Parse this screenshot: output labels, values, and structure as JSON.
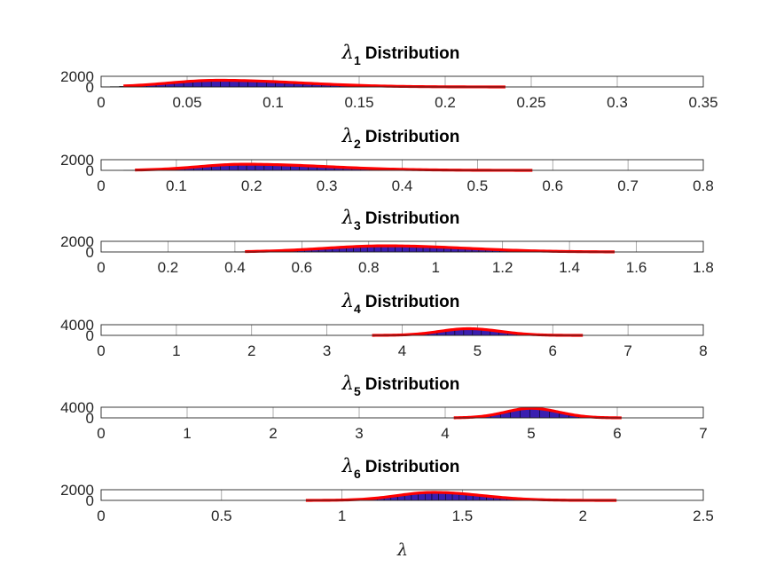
{
  "chart_data": {
    "type": "figure",
    "xlabel": "λ",
    "colors": {
      "bars": "#3a1fb0",
      "bar_edge": "#000000",
      "fit": "#ff0000",
      "axes": "#262626",
      "grid": "#262626"
    },
    "grid": true,
    "subplots": [
      {
        "title": {
          "symbol": "λ",
          "subscript": "1",
          "text": "Distribution"
        },
        "xlim": [
          0,
          0.35
        ],
        "ylim": [
          0,
          2000
        ],
        "xticks": [
          0,
          0.05,
          0.1,
          0.15,
          0.2,
          0.25,
          0.3,
          0.35
        ],
        "xtick_labels": [
          "0",
          "0.05",
          "0.1",
          "0.15",
          "0.2",
          "0.25",
          "0.3",
          "0.35"
        ],
        "yticks": [
          0,
          2000
        ],
        "ytick_labels": [
          "0",
          "2000"
        ],
        "histogram": {
          "range": [
            0.0,
            0.32
          ],
          "peak_x": 0.068,
          "peak": 1100,
          "sigma_left": 0.025,
          "sigma_right": 0.04,
          "bins": 60
        },
        "fit": {
          "range": [
            0.013,
            0.235
          ],
          "peak_x": 0.068,
          "peak": 1250,
          "sigma_left": 0.028,
          "sigma_right": 0.048
        }
      },
      {
        "title": {
          "symbol": "λ",
          "subscript": "2",
          "text": "Distribution"
        },
        "xlim": [
          0,
          0.8
        ],
        "ylim": [
          0,
          2000
        ],
        "xticks": [
          0,
          0.1,
          0.2,
          0.3,
          0.4,
          0.5,
          0.6,
          0.7,
          0.8
        ],
        "xtick_labels": [
          "0",
          "0.1",
          "0.2",
          "0.3",
          "0.4",
          "0.5",
          "0.6",
          "0.7",
          "0.8"
        ],
        "yticks": [
          0,
          2000
        ],
        "ytick_labels": [
          "0",
          "2000"
        ],
        "histogram": {
          "range": [
            0.03,
            0.73
          ],
          "peak_x": 0.19,
          "peak": 1000,
          "sigma_left": 0.055,
          "sigma_right": 0.1,
          "bins": 60
        },
        "fit": {
          "range": [
            0.045,
            0.573
          ],
          "peak_x": 0.19,
          "peak": 1150,
          "sigma_left": 0.06,
          "sigma_right": 0.11
        }
      },
      {
        "title": {
          "symbol": "λ",
          "subscript": "3",
          "text": "Distribution"
        },
        "xlim": [
          0,
          1.8
        ],
        "ylim": [
          0,
          2000
        ],
        "xticks": [
          0,
          0.2,
          0.4,
          0.6,
          0.8,
          1,
          1.2,
          1.4,
          1.6,
          1.8
        ],
        "xtick_labels": [
          "0",
          "0.2",
          "0.4",
          "0.6",
          "0.8",
          "1",
          "1.2",
          "1.4",
          "1.6",
          "1.8"
        ],
        "yticks": [
          0,
          2000
        ],
        "ytick_labels": [
          "0",
          "2000"
        ],
        "histogram": {
          "range": [
            0.4,
            1.65
          ],
          "peak_x": 0.85,
          "peak": 1000,
          "sigma_left": 0.17,
          "sigma_right": 0.22,
          "bins": 60
        },
        "fit": {
          "range": [
            0.43,
            1.535
          ],
          "peak_x": 0.85,
          "peak": 1150,
          "sigma_left": 0.18,
          "sigma_right": 0.24
        }
      },
      {
        "title": {
          "symbol": "λ",
          "subscript": "4",
          "text": "Distribution"
        },
        "xlim": [
          0,
          8
        ],
        "ylim": [
          0,
          4000
        ],
        "xticks": [
          0,
          1,
          2,
          3,
          4,
          5,
          6,
          7,
          8
        ],
        "xtick_labels": [
          "0",
          "1",
          "2",
          "3",
          "4",
          "5",
          "6",
          "7",
          "8"
        ],
        "yticks": [
          0,
          4000
        ],
        "ytick_labels": [
          "0",
          "4000"
        ],
        "histogram": {
          "range": [
            0.0,
            7.05
          ],
          "peak_x": 4.88,
          "peak": 2300,
          "sigma_left": 0.36,
          "sigma_right": 0.4,
          "bins": 60
        },
        "fit": {
          "range": [
            3.6,
            6.4
          ],
          "peak_x": 4.88,
          "peak": 2500,
          "sigma_left": 0.38,
          "sigma_right": 0.42
        }
      },
      {
        "title": {
          "symbol": "λ",
          "subscript": "5",
          "text": "Distribution"
        },
        "xlim": [
          0,
          7
        ],
        "ylim": [
          0,
          4000
        ],
        "xticks": [
          0,
          1,
          2,
          3,
          4,
          5,
          6,
          7
        ],
        "xtick_labels": [
          "0",
          "1",
          "2",
          "3",
          "4",
          "5",
          "6",
          "7"
        ],
        "yticks": [
          0,
          4000
        ],
        "ytick_labels": [
          "0",
          "4000"
        ],
        "histogram": {
          "range": [
            0.0,
            6.8
          ],
          "peak_x": 5.0,
          "peak": 3500,
          "sigma_left": 0.28,
          "sigma_right": 0.3,
          "bins": 60
        },
        "fit": {
          "range": [
            4.1,
            6.05
          ],
          "peak_x": 5.0,
          "peak": 3600,
          "sigma_left": 0.3,
          "sigma_right": 0.32
        }
      },
      {
        "title": {
          "symbol": "λ",
          "subscript": "6",
          "text": "Distribution"
        },
        "xlim": [
          0,
          2.5
        ],
        "ylim": [
          0,
          2000
        ],
        "xticks": [
          0,
          0.5,
          1,
          1.5,
          2,
          2.5
        ],
        "xtick_labels": [
          "0",
          "0.5",
          "1",
          "1.5",
          "2",
          "2.5"
        ],
        "yticks": [
          0,
          2000
        ],
        "ytick_labels": [
          "0",
          "2000"
        ],
        "histogram": {
          "range": [
            0.75,
            2.45
          ],
          "peak_x": 1.38,
          "peak": 1350,
          "sigma_left": 0.14,
          "sigma_right": 0.19,
          "bins": 60
        },
        "fit": {
          "range": [
            0.85,
            2.14
          ],
          "peak_x": 1.38,
          "peak": 1500,
          "sigma_left": 0.15,
          "sigma_right": 0.2
        }
      }
    ]
  }
}
